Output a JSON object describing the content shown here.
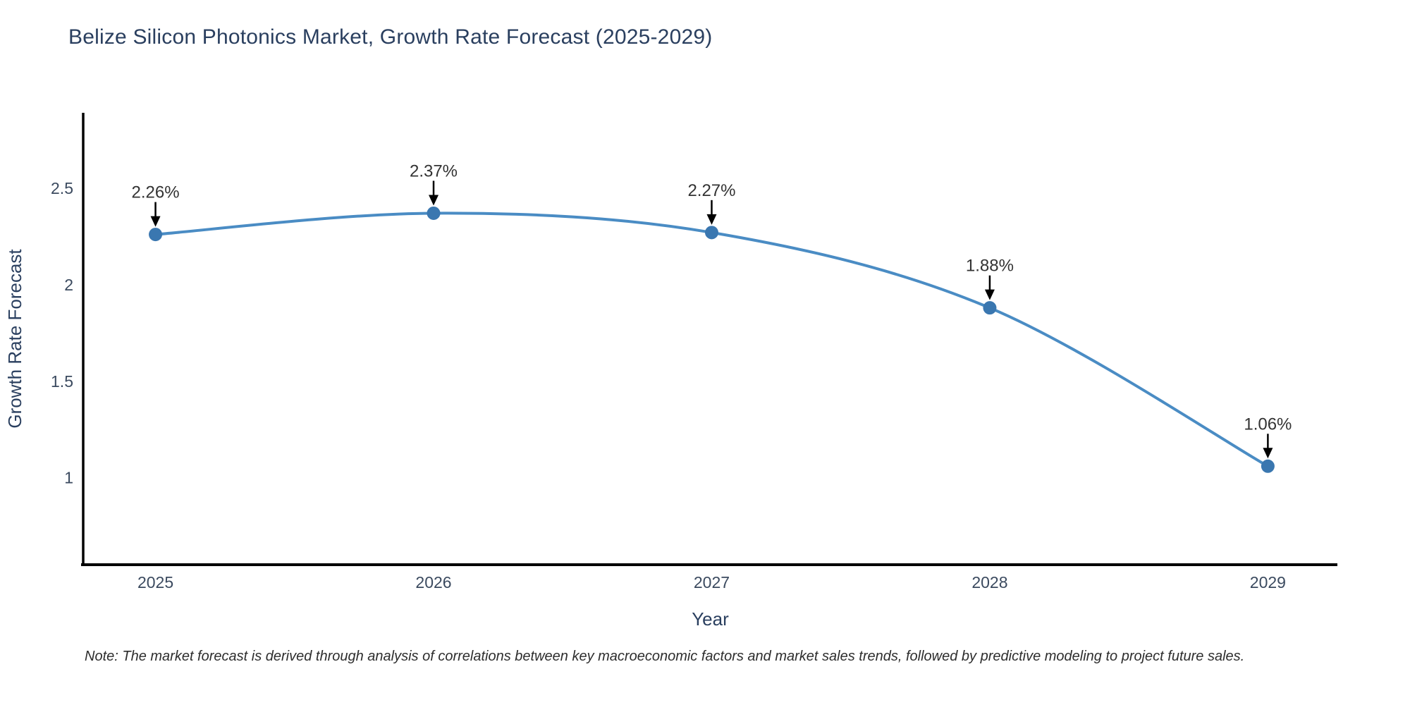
{
  "page": {
    "background": "#ffffff"
  },
  "title": {
    "text": "Belize Silicon Photonics Market, Growth Rate Forecast (2025-2029)",
    "color": "#2a3f5f"
  },
  "note": {
    "text": "Note: The market forecast is derived through analysis of correlations between key macroeconomic factors and market sales trends, followed by predictive modeling to project future sales."
  },
  "chart_data": {
    "type": "line",
    "title": "Belize Silicon Photonics Market, Growth Rate Forecast (2025-2029)",
    "x": [
      2025,
      2026,
      2027,
      2028,
      2029
    ],
    "values": [
      2.26,
      2.37,
      2.27,
      1.88,
      1.06
    ],
    "point_labels": [
      "2.26%",
      "2.37%",
      "2.27%",
      "1.88%",
      "1.06%"
    ],
    "xlabel": "Year",
    "ylabel": "Growth Rate Forecast",
    "xticks": [
      "2025",
      "2026",
      "2027",
      "2028",
      "2029"
    ],
    "yticks": [
      1,
      1.5,
      2,
      2.5
    ],
    "ytick_labels": [
      "1",
      "1.5",
      "2",
      "2.5"
    ],
    "xlim": [
      2024.74,
      2029.25
    ],
    "ylim": [
      0.55,
      2.89
    ],
    "grid": false,
    "legend": false,
    "line_shape": "spline",
    "annotations_have_arrows": true,
    "colors": {
      "line": "#4a8cc4",
      "marker": "#3a77b0",
      "axis_line": "#000000",
      "tick_label": "#3b4a5f",
      "axis_title": "#2a3f5f",
      "annotation_text": "#333333",
      "arrow": "#000000"
    }
  }
}
